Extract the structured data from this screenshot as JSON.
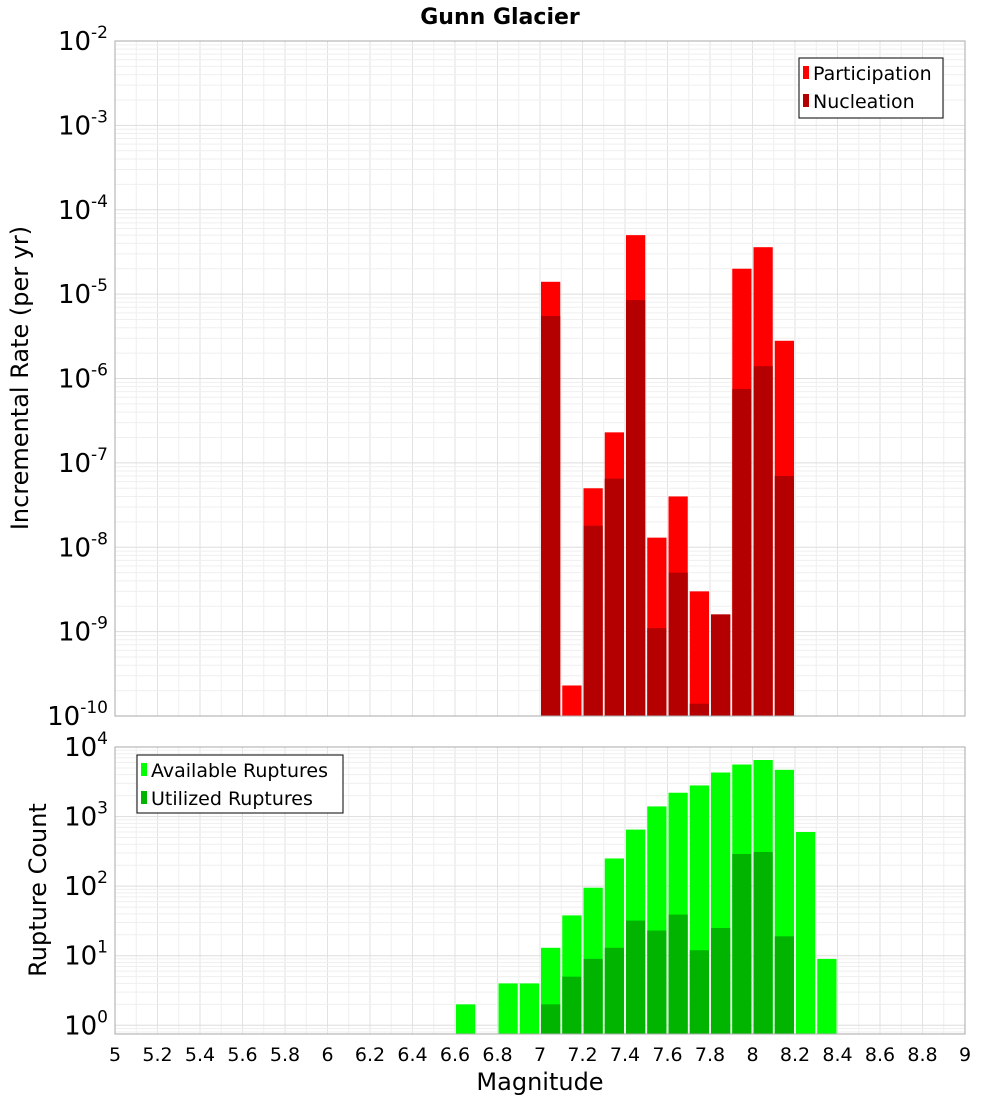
{
  "chart_data": [
    {
      "type": "bar",
      "title": "Gunn Glacier",
      "xlabel": "",
      "ylabel": "Incremental Rate (per yr)",
      "yscale": "log",
      "ylim": [
        1e-10,
        0.01
      ],
      "xlim": [
        5,
        9
      ],
      "bin_width": 0.1,
      "grid": true,
      "legend_position": "top-right",
      "ytick_labels": [
        {
          "base": "10",
          "exp": "-10"
        },
        {
          "base": "10",
          "exp": "-9"
        },
        {
          "base": "10",
          "exp": "-8"
        },
        {
          "base": "10",
          "exp": "-7"
        },
        {
          "base": "10",
          "exp": "-6"
        },
        {
          "base": "10",
          "exp": "-5"
        },
        {
          "base": "10",
          "exp": "-4"
        },
        {
          "base": "10",
          "exp": "-3"
        },
        {
          "base": "10",
          "exp": "-2"
        }
      ],
      "x": [
        7.05,
        7.15,
        7.25,
        7.35,
        7.45,
        7.55,
        7.65,
        7.75,
        7.85,
        7.95,
        8.05,
        8.15
      ],
      "series": [
        {
          "name": "Participation",
          "color": "#ff0000",
          "values": [
            1.4e-05,
            2.3e-10,
            5e-08,
            2.3e-07,
            5e-05,
            1.3e-08,
            4e-08,
            3e-09,
            1.6e-09,
            2e-05,
            3.6e-05,
            2.8e-06
          ]
        },
        {
          "name": "Nucleation",
          "color": "#b40000",
          "values": [
            5.5e-06,
            null,
            1.8e-08,
            6.5e-08,
            8.5e-06,
            1.1e-09,
            5e-09,
            1.4e-10,
            1.6e-09,
            7.5e-07,
            1.4e-06,
            7e-08
          ]
        }
      ]
    },
    {
      "type": "bar",
      "title": "",
      "xlabel": "Magnitude",
      "ylabel": "Rupture Count",
      "yscale": "log",
      "ylim": [
        0.75,
        10000
      ],
      "xlim": [
        5,
        9
      ],
      "bin_width": 0.1,
      "grid": true,
      "legend_position": "top-left",
      "ytick_labels": [
        {
          "base": "10",
          "exp": "0"
        },
        {
          "base": "10",
          "exp": "1"
        },
        {
          "base": "10",
          "exp": "2"
        },
        {
          "base": "10",
          "exp": "3"
        },
        {
          "base": "10",
          "exp": "4"
        }
      ],
      "xtick_labels": [
        "5",
        "5.2",
        "5.4",
        "5.6",
        "5.8",
        "6",
        "6.2",
        "6.4",
        "6.6",
        "6.8",
        "7",
        "7.2",
        "7.4",
        "7.6",
        "7.8",
        "8",
        "8.2",
        "8.4",
        "8.6",
        "8.8",
        "9"
      ],
      "x": [
        6.65,
        6.85,
        6.95,
        7.05,
        7.15,
        7.25,
        7.35,
        7.45,
        7.55,
        7.65,
        7.75,
        7.85,
        7.95,
        8.05,
        8.15,
        8.25,
        8.35
      ],
      "series": [
        {
          "name": "Available Ruptures",
          "color": "#00ff00",
          "values": [
            2,
            4,
            4,
            13,
            38,
            95,
            250,
            650,
            1400,
            2200,
            2800,
            4300,
            5600,
            6500,
            4700,
            600,
            9
          ]
        },
        {
          "name": "Utilized Ruptures",
          "color": "#00b400",
          "values": [
            null,
            null,
            null,
            2,
            5,
            9,
            13,
            32,
            23,
            39,
            12,
            25,
            290,
            310,
            19,
            null,
            null
          ]
        }
      ]
    }
  ]
}
